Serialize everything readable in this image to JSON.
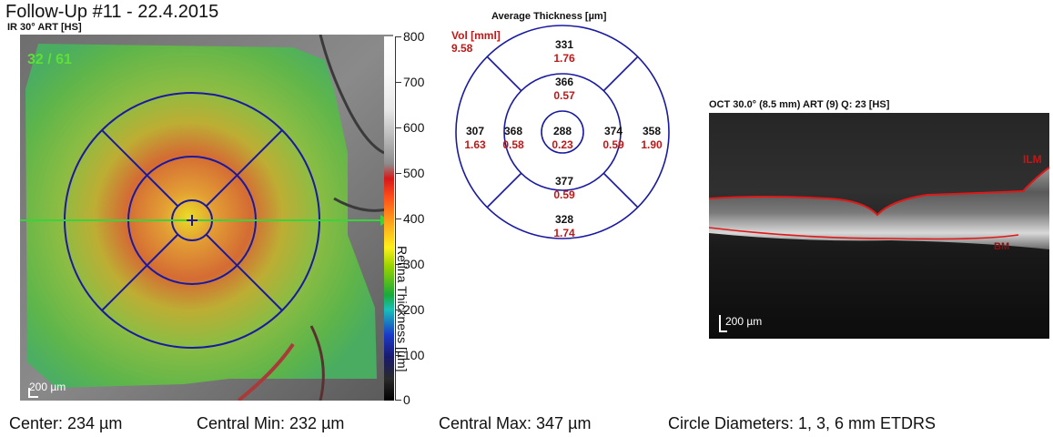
{
  "title": "Follow-Up #11 - 22.4.2015",
  "fundus": {
    "header": "IR 30° ART [HS]",
    "frame_counter": "32 / 61",
    "scale_label": "200 µm"
  },
  "colorbar": {
    "title": "Retina Thickness [µm]",
    "ticks": [
      "800",
      "700",
      "600",
      "500",
      "400",
      "300",
      "200",
      "100",
      "0"
    ]
  },
  "etdrs": {
    "title": "Average Thickness [µm]",
    "vol_label": "Vol [mml]",
    "total_volume": "9.58",
    "sectors": {
      "outer_superior": {
        "thickness": "331",
        "volume": "1.76"
      },
      "inner_superior": {
        "thickness": "366",
        "volume": "0.57"
      },
      "outer_temporal": {
        "thickness": "307",
        "volume": "1.63"
      },
      "inner_temporal": {
        "thickness": "368",
        "volume": "0.58"
      },
      "center": {
        "thickness": "288",
        "volume": "0.23"
      },
      "inner_nasal": {
        "thickness": "374",
        "volume": "0.59"
      },
      "outer_nasal": {
        "thickness": "358",
        "volume": "1.90"
      },
      "inner_inferior": {
        "thickness": "377",
        "volume": "0.59"
      },
      "outer_inferior": {
        "thickness": "328",
        "volume": "1.74"
      }
    }
  },
  "oct": {
    "header": "OCT 30.0° (8.5 mm) ART (9) Q: 23 [HS]",
    "ilm_label": "ILM",
    "bm_label": "BM",
    "scale_label": "200 µm"
  },
  "footer": {
    "center": "Center: 234 µm",
    "central_min": "Central Min: 232 µm",
    "central_max": "Central Max: 347 µm",
    "circle_diameters": "Circle Diameters:  1, 3, 6 mm ETDRS"
  },
  "colors": {
    "circles": "#1a1aa0",
    "scan_line": "#3cd23c",
    "values_red": "#c01818",
    "ilm_line": "#e01818"
  }
}
